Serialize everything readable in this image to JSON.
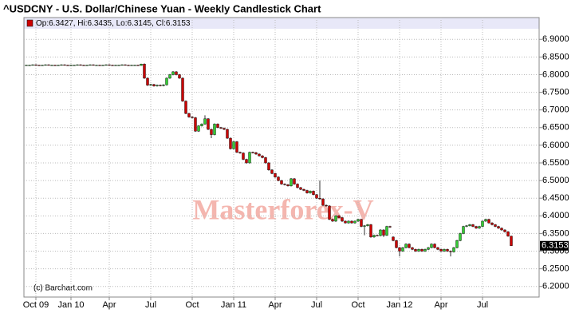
{
  "chart_data": {
    "type": "candlestick",
    "title": "^USDCNY - U.S. Dollar/Chinese Yuan - Weekly Candlestick Chart",
    "legend": "Op:6.3427, Hi:6.3435, Lo:6.3145, Cl:6.3153",
    "watermark": "Masterforex-V",
    "credit": "(c) Barchart.com",
    "up_color": "#33cc33",
    "down_color": "#cc0000",
    "grid": true,
    "ylim": [
      6.17,
      6.93
    ],
    "yticks": [
      {
        "value": 6.2,
        "label": "6.2000"
      },
      {
        "value": 6.25,
        "label": "6.2500"
      },
      {
        "value": 6.3,
        "label": "6.3000"
      },
      {
        "value": 6.35,
        "label": "6.3500"
      },
      {
        "value": 6.4,
        "label": "6.4000"
      },
      {
        "value": 6.45,
        "label": "6.4500"
      },
      {
        "value": 6.5,
        "label": "6.5000"
      },
      {
        "value": 6.55,
        "label": "6.5500"
      },
      {
        "value": 6.6,
        "label": "6.6000"
      },
      {
        "value": 6.65,
        "label": "6.6500"
      },
      {
        "value": 6.7,
        "label": "6.7000"
      },
      {
        "value": 6.75,
        "label": "6.7500"
      },
      {
        "value": 6.8,
        "label": "6.8000"
      },
      {
        "value": 6.85,
        "label": "6.8500"
      },
      {
        "value": 6.9,
        "label": "6.9000"
      }
    ],
    "categories": [
      null,
      null,
      null,
      "Oct 09",
      null,
      null,
      null,
      null,
      null,
      null,
      null,
      null,
      null,
      null,
      "Jan 10",
      null,
      null,
      null,
      null,
      null,
      null,
      null,
      null,
      null,
      null,
      null,
      "Apr",
      null,
      null,
      null,
      null,
      null,
      null,
      null,
      null,
      null,
      null,
      null,
      null,
      "Jul",
      null,
      null,
      null,
      null,
      null,
      null,
      null,
      null,
      null,
      null,
      null,
      null,
      "Oct",
      null,
      null,
      null,
      null,
      null,
      null,
      null,
      null,
      null,
      null,
      null,
      null,
      "Jan 11",
      null,
      null,
      null,
      null,
      null,
      null,
      null,
      null,
      null,
      null,
      null,
      null,
      "Apr",
      null,
      null,
      null,
      null,
      null,
      null,
      null,
      null,
      null,
      null,
      null,
      null,
      "Jul",
      null,
      null,
      null,
      null,
      null,
      null,
      null,
      null,
      null,
      null,
      null,
      null,
      "Oct",
      null,
      null,
      null,
      null,
      null,
      null,
      null,
      null,
      null,
      null,
      null,
      null,
      "Jan 12",
      null,
      null,
      null,
      null,
      null,
      null,
      null,
      null,
      null,
      null,
      null,
      null,
      "Apr",
      null,
      null,
      null,
      null,
      null,
      null,
      null,
      null,
      null,
      null,
      null,
      null,
      "Jul",
      null,
      null,
      null,
      null,
      null,
      null,
      null,
      null,
      null
    ],
    "open": [
      6.827,
      6.827,
      6.827,
      6.828,
      6.827,
      6.826,
      6.827,
      6.828,
      6.827,
      6.827,
      6.826,
      6.827,
      6.828,
      6.827,
      6.826,
      6.827,
      6.827,
      6.828,
      6.827,
      6.826,
      6.827,
      6.828,
      6.827,
      6.827,
      6.826,
      6.827,
      6.828,
      6.827,
      6.826,
      6.827,
      6.827,
      6.828,
      6.827,
      6.826,
      6.827,
      6.827,
      6.826,
      6.83,
      6.79,
      6.77,
      6.772,
      6.768,
      6.77,
      6.769,
      6.771,
      6.79,
      6.8,
      6.808,
      6.8,
      6.79,
      6.725,
      6.69,
      6.68,
      6.678,
      6.64,
      6.655,
      6.66,
      6.675,
      6.645,
      6.63,
      6.66,
      6.65,
      6.648,
      6.645,
      6.62,
      6.59,
      6.61,
      6.58,
      6.578,
      6.56,
      6.55,
      6.58,
      6.579,
      6.575,
      6.57,
      6.565,
      6.55,
      6.53,
      6.52,
      6.51,
      6.5,
      6.49,
      6.488,
      6.485,
      6.505,
      6.49,
      6.48,
      6.475,
      6.472,
      6.465,
      6.47,
      6.46,
      6.45,
      6.448,
      6.43,
      6.428,
      6.39,
      6.385,
      6.4,
      6.395,
      6.385,
      6.38,
      6.385,
      6.38,
      6.385,
      6.39,
      6.37,
      6.372,
      6.375,
      6.34,
      6.345,
      6.344,
      6.36,
      6.345,
      6.37,
      6.34,
      6.33,
      6.31,
      6.3,
      6.31,
      6.32,
      6.31,
      6.305,
      6.3,
      6.305,
      6.3,
      6.305,
      6.31,
      6.32,
      6.31,
      6.305,
      6.3,
      6.305,
      6.3,
      6.298,
      6.31,
      6.33,
      6.35,
      6.37,
      6.372,
      6.375,
      6.37,
      6.365,
      6.37,
      6.385,
      6.39,
      6.38,
      6.375,
      6.37,
      6.365,
      6.36,
      6.355,
      6.3427
    ],
    "high": [
      6.828,
      6.828,
      6.829,
      6.829,
      6.828,
      6.828,
      6.829,
      6.829,
      6.828,
      6.828,
      6.828,
      6.829,
      6.829,
      6.828,
      6.828,
      6.828,
      6.829,
      6.829,
      6.828,
      6.828,
      6.829,
      6.829,
      6.828,
      6.828,
      6.828,
      6.829,
      6.829,
      6.828,
      6.828,
      6.828,
      6.829,
      6.829,
      6.828,
      6.828,
      6.828,
      6.828,
      6.831,
      6.832,
      6.792,
      6.774,
      6.774,
      6.772,
      6.772,
      6.773,
      6.792,
      6.802,
      6.81,
      6.81,
      6.802,
      6.792,
      6.727,
      6.692,
      6.682,
      6.68,
      6.657,
      6.662,
      6.685,
      6.677,
      6.647,
      6.662,
      6.662,
      6.652,
      6.65,
      6.647,
      6.622,
      6.612,
      6.612,
      6.582,
      6.58,
      6.562,
      6.582,
      6.582,
      6.581,
      6.577,
      6.572,
      6.567,
      6.552,
      6.532,
      6.522,
      6.512,
      6.502,
      6.492,
      6.49,
      6.507,
      6.507,
      6.492,
      6.482,
      6.477,
      6.474,
      6.472,
      6.472,
      6.462,
      6.5,
      6.45,
      6.432,
      6.43,
      6.392,
      6.402,
      6.402,
      6.397,
      6.387,
      6.387,
      6.387,
      6.387,
      6.392,
      6.392,
      6.374,
      6.377,
      6.377,
      6.347,
      6.347,
      6.362,
      6.362,
      6.372,
      6.372,
      6.342,
      6.332,
      6.312,
      6.312,
      6.322,
      6.322,
      6.312,
      6.307,
      6.307,
      6.307,
      6.307,
      6.312,
      6.322,
      6.322,
      6.312,
      6.307,
      6.307,
      6.307,
      6.302,
      6.312,
      6.332,
      6.352,
      6.372,
      6.374,
      6.377,
      6.377,
      6.372,
      6.372,
      6.387,
      6.392,
      6.392,
      6.382,
      6.377,
      6.372,
      6.367,
      6.362,
      6.357,
      6.3435
    ],
    "low": [
      6.826,
      6.826,
      6.826,
      6.826,
      6.825,
      6.825,
      6.826,
      6.826,
      6.826,
      6.825,
      6.825,
      6.826,
      6.826,
      6.825,
      6.825,
      6.826,
      6.826,
      6.826,
      6.825,
      6.825,
      6.826,
      6.826,
      6.826,
      6.825,
      6.825,
      6.826,
      6.826,
      6.825,
      6.825,
      6.826,
      6.826,
      6.826,
      6.825,
      6.825,
      6.826,
      6.825,
      6.825,
      6.788,
      6.768,
      6.768,
      6.766,
      6.766,
      6.767,
      6.767,
      6.769,
      6.788,
      6.798,
      6.798,
      6.788,
      6.723,
      6.688,
      6.678,
      6.676,
      6.638,
      6.638,
      6.653,
      6.658,
      6.643,
      6.62,
      6.628,
      6.648,
      6.646,
      6.643,
      6.618,
      6.588,
      6.588,
      6.578,
      6.576,
      6.558,
      6.548,
      6.548,
      6.577,
      6.573,
      6.568,
      6.563,
      6.548,
      6.528,
      6.518,
      6.508,
      6.498,
      6.488,
      6.486,
      6.483,
      6.483,
      6.488,
      6.478,
      6.473,
      6.47,
      6.463,
      6.463,
      6.458,
      6.448,
      6.446,
      6.428,
      6.426,
      6.388,
      6.383,
      6.383,
      6.393,
      6.383,
      6.378,
      6.378,
      6.378,
      6.378,
      6.383,
      6.368,
      6.345,
      6.37,
      6.338,
      6.338,
      6.342,
      6.342,
      6.34,
      6.343,
      6.366,
      6.328,
      6.308,
      6.285,
      6.298,
      6.308,
      6.308,
      6.303,
      6.298,
      6.298,
      6.298,
      6.298,
      6.303,
      6.308,
      6.308,
      6.303,
      6.298,
      6.298,
      6.298,
      6.285,
      6.296,
      6.308,
      6.328,
      6.348,
      6.368,
      6.37,
      6.368,
      6.363,
      6.363,
      6.368,
      6.383,
      6.378,
      6.373,
      6.368,
      6.363,
      6.358,
      6.353,
      6.3407,
      6.3145
    ],
    "close": [
      6.827,
      6.827,
      6.828,
      6.827,
      6.826,
      6.827,
      6.828,
      6.827,
      6.827,
      6.826,
      6.827,
      6.828,
      6.827,
      6.826,
      6.827,
      6.827,
      6.828,
      6.827,
      6.826,
      6.827,
      6.828,
      6.827,
      6.827,
      6.826,
      6.827,
      6.828,
      6.827,
      6.826,
      6.827,
      6.827,
      6.828,
      6.827,
      6.826,
      6.827,
      6.827,
      6.826,
      6.83,
      6.79,
      6.77,
      6.772,
      6.768,
      6.77,
      6.769,
      6.771,
      6.79,
      6.8,
      6.808,
      6.8,
      6.79,
      6.725,
      6.69,
      6.68,
      6.678,
      6.64,
      6.655,
      6.66,
      6.675,
      6.645,
      6.63,
      6.66,
      6.65,
      6.648,
      6.645,
      6.62,
      6.59,
      6.61,
      6.58,
      6.578,
      6.56,
      6.55,
      6.58,
      6.579,
      6.575,
      6.57,
      6.565,
      6.55,
      6.53,
      6.52,
      6.51,
      6.5,
      6.49,
      6.488,
      6.485,
      6.505,
      6.49,
      6.48,
      6.475,
      6.472,
      6.465,
      6.47,
      6.46,
      6.45,
      6.448,
      6.43,
      6.428,
      6.39,
      6.385,
      6.4,
      6.395,
      6.385,
      6.38,
      6.385,
      6.38,
      6.385,
      6.39,
      6.37,
      6.372,
      6.375,
      6.34,
      6.345,
      6.344,
      6.36,
      6.345,
      6.37,
      6.368,
      6.33,
      6.31,
      6.3,
      6.31,
      6.32,
      6.31,
      6.305,
      6.3,
      6.305,
      6.3,
      6.305,
      6.31,
      6.32,
      6.31,
      6.305,
      6.3,
      6.305,
      6.3,
      6.298,
      6.31,
      6.33,
      6.35,
      6.37,
      6.372,
      6.375,
      6.37,
      6.365,
      6.37,
      6.385,
      6.39,
      6.38,
      6.375,
      6.37,
      6.365,
      6.36,
      6.355,
      6.3427,
      6.3153
    ]
  }
}
